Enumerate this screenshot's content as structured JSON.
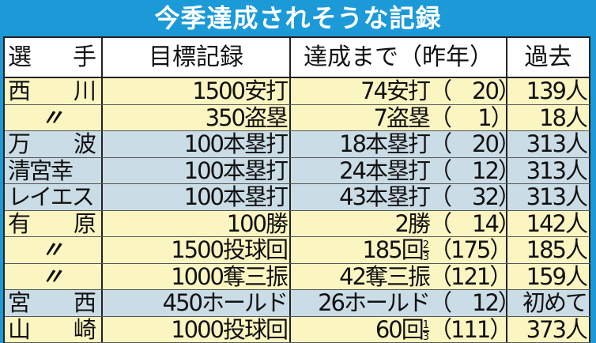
{
  "title": "今季達成されそうな記録",
  "headers": {
    "player": [
      "選",
      "手"
    ],
    "target": "目標記録",
    "remaining": "達成まで（昨年）",
    "past": "過去"
  },
  "rows": [
    {
      "player": [
        "西",
        "川"
      ],
      "target": "1500安打",
      "remaining": "74安打",
      "frac": null,
      "last_year": "（　20）",
      "past": "139人",
      "shade": "y"
    },
    {
      "player": [
        "〃"
      ],
      "target": "350盗塁",
      "remaining": "7盗塁",
      "frac": null,
      "last_year": "（　 1）",
      "past": "18人",
      "shade": "y"
    },
    {
      "player": [
        "万",
        "波"
      ],
      "target": "100本塁打",
      "remaining": "18本塁打",
      "frac": null,
      "last_year": "（　20）",
      "past": "313人",
      "shade": "b"
    },
    {
      "player": [
        "清宮幸"
      ],
      "target": "100本塁打",
      "remaining": "24本塁打",
      "frac": null,
      "last_year": "（　12）",
      "past": "313人",
      "shade": "b"
    },
    {
      "player": [
        "レイエス"
      ],
      "target": "100本塁打",
      "remaining": "43本塁打",
      "frac": null,
      "last_year": "（　32）",
      "past": "313人",
      "shade": "b"
    },
    {
      "player": [
        "有",
        "原"
      ],
      "target": "100勝",
      "remaining": "2勝",
      "frac": null,
      "last_year": "（　14）",
      "past": "142人",
      "shade": "y"
    },
    {
      "player": [
        "〃"
      ],
      "target": "1500投球回",
      "remaining": "185回",
      "frac": [
        "2",
        "3"
      ],
      "last_year": "（175）",
      "past": "185人",
      "shade": "y"
    },
    {
      "player": [
        "〃"
      ],
      "target": "1000奪三振",
      "remaining": "42奪三振",
      "frac": null,
      "last_year": "（121）",
      "past": "159人",
      "shade": "y"
    },
    {
      "player": [
        "宮",
        "西"
      ],
      "target": "450ホールド",
      "remaining": "26ホールド",
      "frac": null,
      "last_year": "（　12）",
      "past": "初めて",
      "shade": "b"
    },
    {
      "player": [
        "山",
        "崎"
      ],
      "target": "1000投球回",
      "remaining": "60回",
      "frac": [
        "1",
        "3"
      ],
      "last_year": "（111）",
      "past": "373人",
      "shade": "y"
    }
  ],
  "colors": {
    "frame": "#1c9ad8",
    "yellow_row": "#fbf5c2",
    "blue_row": "#cadce6"
  }
}
